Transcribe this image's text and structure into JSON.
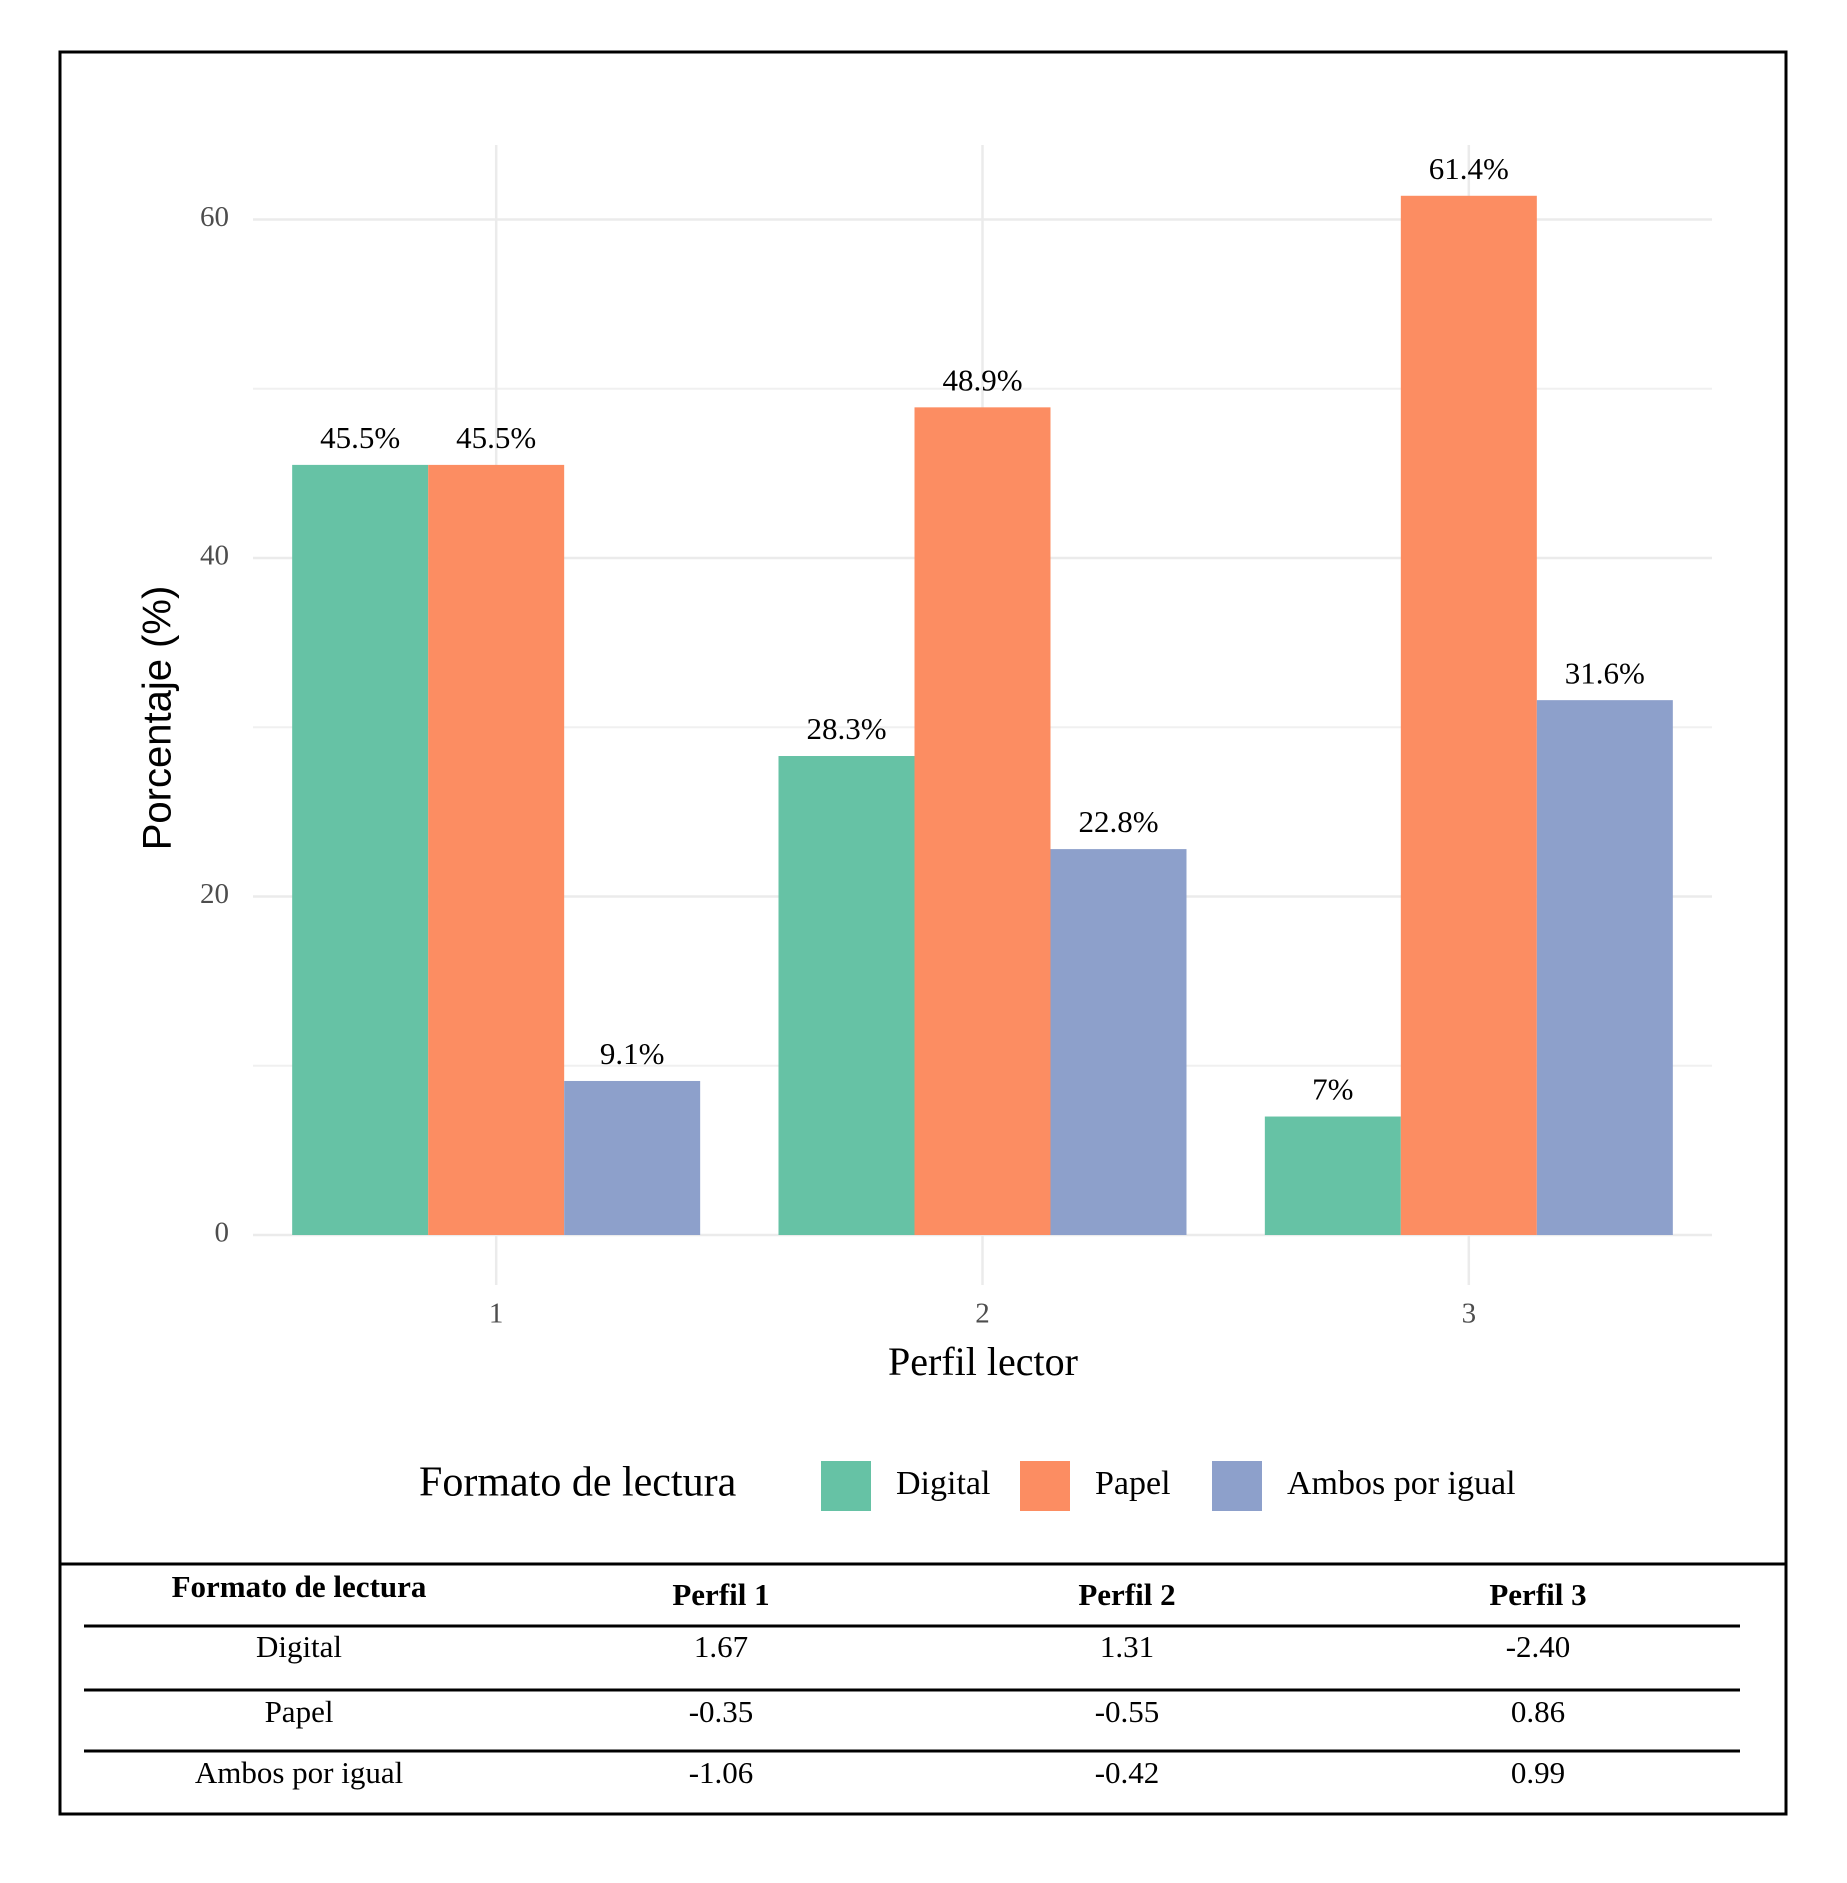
{
  "chart_data": {
    "type": "bar",
    "x_label": "Perfil lector",
    "y_label": "Porcentaje (%)",
    "categories": [
      "1",
      "2",
      "3"
    ],
    "legend_title": "Formato de lectura",
    "series": [
      {
        "name": "Digital",
        "color": "#66c2a5",
        "values": [
          45.5,
          28.3,
          7
        ],
        "value_labels": [
          "45.5%",
          "28.3%",
          "7%"
        ]
      },
      {
        "name": "Papel",
        "color": "#fc8d62",
        "values": [
          45.5,
          48.9,
          61.4
        ],
        "value_labels": [
          "45.5%",
          "48.9%",
          "61.4%"
        ]
      },
      {
        "name": "Ambos por igual",
        "color": "#8da0cb",
        "values": [
          9.1,
          22.8,
          31.6
        ],
        "value_labels": [
          "9.1%",
          "22.8%",
          "31.6%"
        ]
      }
    ],
    "ylim": [
      0,
      64.4
    ],
    "yticks": [
      0,
      20,
      40,
      60
    ],
    "grid": true
  },
  "table": {
    "header": [
      "Formato de lectura",
      "Perfil 1",
      "Perfil 2",
      "Perfil 3"
    ],
    "rows": [
      [
        "Digital",
        "1.67",
        "1.31",
        "-2.40"
      ],
      [
        "Papel",
        "-0.35",
        "-0.55",
        "0.86"
      ],
      [
        "Ambos por igual",
        "-1.06",
        "-0.42",
        "0.99"
      ]
    ]
  }
}
